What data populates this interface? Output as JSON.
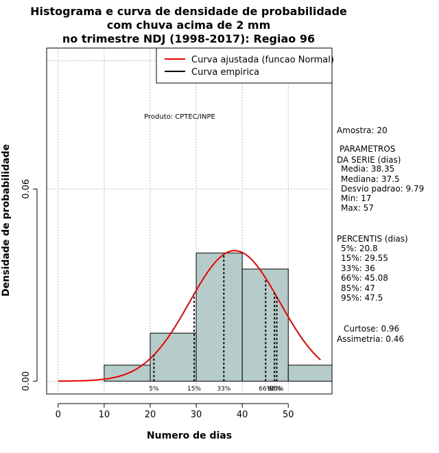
{
  "chart_data": {
    "type": "bar",
    "title": [
      "Histograma e curva de densidade de probabilidade",
      "com chuva acima de 2 mm",
      "no trimestre NDJ (1998-2017): Regiao 96"
    ],
    "xlabel": "Numero de dias",
    "ylabel": "Densidade de probabilidade",
    "xlim": [
      -2.5,
      59.5
    ],
    "ylim": [
      -0.004,
      0.104
    ],
    "x_ticks": [
      0,
      10,
      20,
      30,
      40,
      50
    ],
    "y_ticks": [
      0.0,
      0.06
    ],
    "y_tick_labels": [
      "0.00",
      "0.06"
    ],
    "grid_x": [
      0,
      10,
      20,
      30,
      40,
      50
    ],
    "grid_y": [
      0.0,
      0.06
    ],
    "grid_y_extra": [
      0.1
    ],
    "bin_edges": [
      10,
      20,
      30,
      40,
      50,
      60
    ],
    "values": [
      0.005,
      0.015,
      0.04,
      0.035,
      0.005
    ],
    "bar_color": "#b6cccb",
    "curve_color": "#ee0000",
    "series": [
      {
        "name": "Curva ajustada (funcao Normal)",
        "type": "normal",
        "mean": 38.35,
        "sd": 9.79,
        "x_range": [
          0,
          57
        ]
      }
    ],
    "percentile_lines": [
      {
        "label": "5%",
        "x": 20.8
      },
      {
        "label": "15%",
        "x": 29.55
      },
      {
        "label": "33%",
        "x": 36
      },
      {
        "label": "66%",
        "x": 45.08
      },
      {
        "label": "85%",
        "x": 47
      },
      {
        "label": "95%",
        "x": 47.5
      }
    ],
    "legend": {
      "placement": "top-right",
      "entries": [
        {
          "label": "Curva ajustada (funcao Normal)",
          "color": "#ee0000"
        },
        {
          "label": "Curva empirica",
          "color": "#000000"
        }
      ]
    },
    "annotation": "Produto: CPTEC/INPE"
  },
  "side_panel": {
    "sample": "Amostra: 20",
    "params_lines": [
      "PARAMETROS",
      "DA SERIE (dias)",
      "Media: 38.35",
      "Mediana: 37.5",
      "Desvio padrao: 9.79",
      "Min: 17",
      "Max: 57"
    ],
    "percentile_lines": [
      "PERCENTIS (dias)",
      "5%: 20.8",
      "15%: 29.55",
      "33%: 36",
      "66%: 45.08",
      "85%: 47",
      "95%: 47.5"
    ],
    "shape_lines": [
      "Curtose: 0.96",
      "Assimetria: 0.46"
    ]
  }
}
